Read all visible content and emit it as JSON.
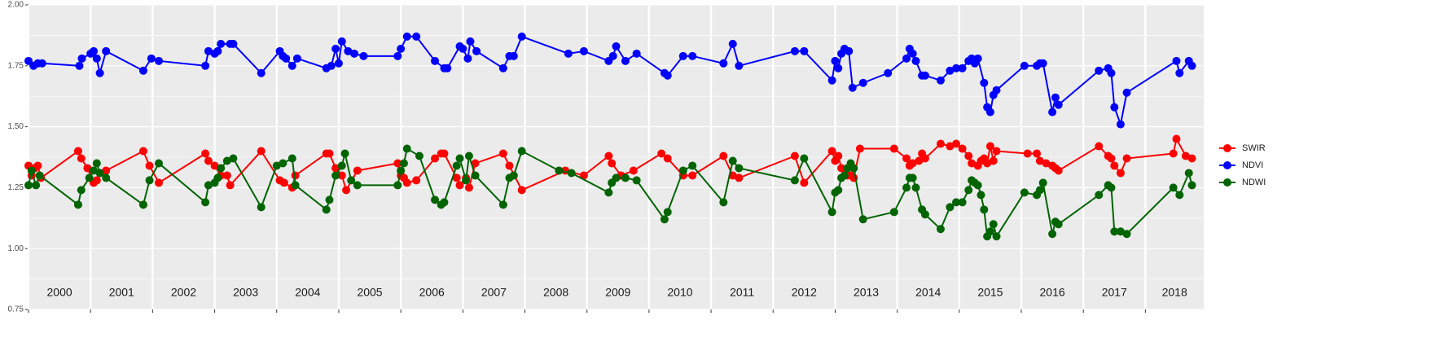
{
  "chart_data": {
    "type": "line",
    "xlim": [
      2000.0,
      2018.94
    ],
    "ylim": [
      0.75,
      2.0
    ],
    "yticks": [
      0.75,
      {
        "value": 1.0,
        "label": "1.00"
      },
      1.25,
      {
        "value": 1.5,
        "label": "1.50"
      },
      1.75,
      {
        "value": 2.0,
        "label": "2.00"
      }
    ],
    "xticks": [
      {
        "value": 2000,
        "label": "2000"
      },
      {
        "value": 2001,
        "label": "2001"
      },
      {
        "value": 2002,
        "label": "2002"
      },
      {
        "value": 2003,
        "label": "2003"
      },
      {
        "value": 2004,
        "label": "2004"
      },
      {
        "value": 2005,
        "label": "2005"
      },
      {
        "value": 2006,
        "label": "2006"
      },
      {
        "value": 2007,
        "label": "2007"
      },
      {
        "value": 2008,
        "label": "2008"
      },
      {
        "value": 2009,
        "label": "2009"
      },
      {
        "value": 2010,
        "label": "2010"
      },
      {
        "value": 2011,
        "label": "2011"
      },
      {
        "value": 2012,
        "label": "2012"
      },
      {
        "value": 2013,
        "label": "2013"
      },
      {
        "value": 2014,
        "label": "2014"
      },
      {
        "value": 2015,
        "label": "2015"
      },
      {
        "value": 2016,
        "label": "2016"
      },
      {
        "value": 2017,
        "label": "2017"
      },
      {
        "value": 2018,
        "label": "2018"
      }
    ],
    "grid": true,
    "legend": "right",
    "series": [
      {
        "name": "SWIR",
        "color": "#ff0000",
        "x": [
          2000.0,
          2000.05,
          2000.1,
          2000.15,
          2000.2,
          2000.8,
          2000.85,
          2000.95,
          2001.05,
          2001.1,
          2001.15,
          2001.25,
          2001.85,
          2001.95,
          2002.1,
          2002.85,
          2002.9,
          2003.0,
          2003.1,
          2003.2,
          2003.25,
          2003.75,
          2004.05,
          2004.12,
          2004.25,
          2004.3,
          2004.8,
          2004.85,
          2004.95,
          2005.05,
          2005.12,
          2005.3,
          2005.95,
          2006.0,
          2006.05,
          2006.1,
          2006.25,
          2006.55,
          2006.65,
          2006.7,
          2006.9,
          2006.95,
          2007.05,
          2007.1,
          2007.2,
          2007.65,
          2007.75,
          2007.95,
          2008.65,
          2008.95,
          2009.35,
          2009.4,
          2009.55,
          2009.75,
          2010.2,
          2010.3,
          2010.55,
          2010.7,
          2011.2,
          2011.35,
          2011.45,
          2012.35,
          2012.5,
          2012.95,
          2013.0,
          2013.05,
          2013.1,
          2013.2,
          2013.25,
          2013.3,
          2013.4,
          2013.95,
          2014.15,
          2014.2,
          2014.25,
          2014.35,
          2014.4,
          2014.45,
          2014.7,
          2014.85,
          2014.95,
          2015.05,
          2015.15,
          2015.2,
          2015.3,
          2015.35,
          2015.4,
          2015.45,
          2015.5,
          2015.55,
          2015.6,
          2016.1,
          2016.25,
          2016.3,
          2016.4,
          2016.5,
          2016.55,
          2016.6,
          2017.25,
          2017.4,
          2017.45,
          2017.5,
          2017.6,
          2017.7,
          2018.45,
          2018.5,
          2018.65,
          2018.75
        ],
        "values": [
          1.34,
          1.3,
          1.33,
          1.34,
          1.29,
          1.4,
          1.37,
          1.33,
          1.27,
          1.28,
          1.31,
          1.32,
          1.4,
          1.34,
          1.27,
          1.39,
          1.36,
          1.34,
          1.3,
          1.3,
          1.26,
          1.4,
          1.28,
          1.27,
          1.25,
          1.3,
          1.39,
          1.39,
          1.33,
          1.3,
          1.24,
          1.32,
          1.35,
          1.3,
          1.29,
          1.27,
          1.28,
          1.37,
          1.39,
          1.39,
          1.29,
          1.26,
          1.29,
          1.25,
          1.35,
          1.39,
          1.34,
          1.24,
          1.32,
          1.3,
          1.38,
          1.35,
          1.3,
          1.32,
          1.39,
          1.37,
          1.3,
          1.3,
          1.38,
          1.3,
          1.29,
          1.38,
          1.27,
          1.4,
          1.36,
          1.38,
          1.33,
          1.3,
          1.3,
          1.29,
          1.41,
          1.41,
          1.37,
          1.34,
          1.35,
          1.36,
          1.39,
          1.37,
          1.43,
          1.42,
          1.43,
          1.41,
          1.38,
          1.35,
          1.34,
          1.36,
          1.37,
          1.35,
          1.42,
          1.36,
          1.4,
          1.39,
          1.39,
          1.36,
          1.35,
          1.34,
          1.33,
          1.32,
          1.42,
          1.38,
          1.37,
          1.34,
          1.31,
          1.37,
          1.39,
          1.45,
          1.38,
          1.37
        ]
      },
      {
        "name": "NDVI",
        "color": "#0000ff",
        "x": [
          2000.0,
          2000.08,
          2000.15,
          2000.22,
          2000.82,
          2000.86,
          2001.0,
          2001.05,
          2001.1,
          2001.15,
          2001.25,
          2001.85,
          2001.98,
          2002.1,
          2002.85,
          2002.9,
          2003.0,
          2003.05,
          2003.1,
          2003.25,
          2003.3,
          2003.75,
          2004.05,
          2004.1,
          2004.15,
          2004.25,
          2004.33,
          2004.8,
          2004.88,
          2004.95,
          2005.0,
          2005.05,
          2005.15,
          2005.25,
          2005.4,
          2005.95,
          2006.0,
          2006.1,
          2006.25,
          2006.55,
          2006.7,
          2006.75,
          2006.95,
          2007.0,
          2007.08,
          2007.12,
          2007.22,
          2007.65,
          2007.75,
          2007.82,
          2007.95,
          2008.7,
          2008.95,
          2009.35,
          2009.42,
          2009.47,
          2009.62,
          2009.8,
          2010.25,
          2010.3,
          2010.55,
          2010.7,
          2011.2,
          2011.35,
          2011.45,
          2012.35,
          2012.5,
          2012.95,
          2013.0,
          2013.05,
          2013.1,
          2013.15,
          2013.22,
          2013.28,
          2013.45,
          2013.85,
          2014.15,
          2014.2,
          2014.25,
          2014.3,
          2014.4,
          2014.45,
          2014.7,
          2014.85,
          2014.95,
          2015.05,
          2015.15,
          2015.2,
          2015.25,
          2015.3,
          2015.4,
          2015.45,
          2015.5,
          2015.55,
          2015.6,
          2016.05,
          2016.25,
          2016.3,
          2016.35,
          2016.5,
          2016.55,
          2016.6,
          2017.25,
          2017.4,
          2017.45,
          2017.5,
          2017.6,
          2017.7,
          2018.5,
          2018.55,
          2018.7,
          2018.75
        ],
        "values": [
          1.77,
          1.75,
          1.76,
          1.76,
          1.75,
          1.78,
          1.8,
          1.81,
          1.78,
          1.72,
          1.81,
          1.73,
          1.78,
          1.77,
          1.75,
          1.81,
          1.8,
          1.81,
          1.84,
          1.84,
          1.84,
          1.72,
          1.81,
          1.79,
          1.78,
          1.75,
          1.78,
          1.74,
          1.75,
          1.82,
          1.76,
          1.85,
          1.81,
          1.8,
          1.79,
          1.79,
          1.82,
          1.87,
          1.87,
          1.77,
          1.74,
          1.74,
          1.83,
          1.82,
          1.78,
          1.85,
          1.81,
          1.74,
          1.79,
          1.79,
          1.87,
          1.8,
          1.81,
          1.77,
          1.79,
          1.83,
          1.77,
          1.8,
          1.72,
          1.71,
          1.79,
          1.79,
          1.76,
          1.84,
          1.75,
          1.81,
          1.81,
          1.69,
          1.77,
          1.74,
          1.8,
          1.82,
          1.81,
          1.66,
          1.68,
          1.72,
          1.78,
          1.82,
          1.8,
          1.77,
          1.71,
          1.71,
          1.69,
          1.73,
          1.74,
          1.74,
          1.77,
          1.78,
          1.76,
          1.78,
          1.68,
          1.58,
          1.56,
          1.63,
          1.65,
          1.75,
          1.75,
          1.76,
          1.76,
          1.56,
          1.62,
          1.59,
          1.73,
          1.74,
          1.72,
          1.58,
          1.51,
          1.64,
          1.77,
          1.72,
          1.77,
          1.75
        ]
      },
      {
        "name": "NDWI",
        "color": "#006400",
        "x": [
          2000.0,
          2000.05,
          2000.12,
          2000.18,
          2000.8,
          2000.85,
          2000.98,
          2001.05,
          2001.1,
          2001.15,
          2001.25,
          2001.85,
          2001.95,
          2002.1,
          2002.85,
          2002.9,
          2003.0,
          2003.05,
          2003.1,
          2003.2,
          2003.3,
          2003.75,
          2004.0,
          2004.1,
          2004.25,
          2004.3,
          2004.8,
          2004.85,
          2004.95,
          2005.05,
          2005.1,
          2005.2,
          2005.3,
          2005.95,
          2006.0,
          2006.05,
          2006.1,
          2006.3,
          2006.55,
          2006.65,
          2006.7,
          2006.9,
          2006.95,
          2007.05,
          2007.1,
          2007.2,
          2007.65,
          2007.75,
          2007.82,
          2007.95,
          2008.55,
          2008.75,
          2009.35,
          2009.4,
          2009.47,
          2009.62,
          2009.8,
          2010.25,
          2010.3,
          2010.55,
          2010.7,
          2011.2,
          2011.35,
          2011.45,
          2012.35,
          2012.5,
          2012.95,
          2013.0,
          2013.05,
          2013.1,
          2013.15,
          2013.2,
          2013.25,
          2013.3,
          2013.45,
          2013.95,
          2014.15,
          2014.2,
          2014.25,
          2014.3,
          2014.4,
          2014.45,
          2014.7,
          2014.85,
          2014.95,
          2015.05,
          2015.15,
          2015.2,
          2015.25,
          2015.3,
          2015.35,
          2015.4,
          2015.45,
          2015.5,
          2015.55,
          2015.6,
          2016.05,
          2016.25,
          2016.3,
          2016.35,
          2016.5,
          2016.55,
          2016.6,
          2017.25,
          2017.4,
          2017.45,
          2017.5,
          2017.6,
          2017.7,
          2018.45,
          2018.55,
          2018.7,
          2018.75
        ],
        "values": [
          1.26,
          1.32,
          1.26,
          1.3,
          1.18,
          1.24,
          1.29,
          1.32,
          1.35,
          1.31,
          1.29,
          1.18,
          1.28,
          1.35,
          1.19,
          1.26,
          1.27,
          1.29,
          1.33,
          1.36,
          1.37,
          1.17,
          1.34,
          1.35,
          1.37,
          1.26,
          1.16,
          1.2,
          1.3,
          1.34,
          1.39,
          1.28,
          1.26,
          1.26,
          1.32,
          1.35,
          1.41,
          1.38,
          1.2,
          1.18,
          1.19,
          1.34,
          1.37,
          1.28,
          1.38,
          1.3,
          1.18,
          1.29,
          1.3,
          1.4,
          1.32,
          1.31,
          1.23,
          1.27,
          1.29,
          1.29,
          1.28,
          1.12,
          1.15,
          1.32,
          1.34,
          1.19,
          1.36,
          1.33,
          1.28,
          1.37,
          1.15,
          1.23,
          1.24,
          1.29,
          1.3,
          1.33,
          1.35,
          1.33,
          1.12,
          1.15,
          1.25,
          1.29,
          1.29,
          1.25,
          1.16,
          1.14,
          1.08,
          1.17,
          1.19,
          1.19,
          1.24,
          1.28,
          1.27,
          1.26,
          1.22,
          1.16,
          1.05,
          1.07,
          1.1,
          1.05,
          1.23,
          1.22,
          1.24,
          1.27,
          1.06,
          1.11,
          1.1,
          1.22,
          1.26,
          1.25,
          1.07,
          1.07,
          1.06,
          1.25,
          1.22,
          1.31,
          1.26
        ]
      }
    ]
  }
}
